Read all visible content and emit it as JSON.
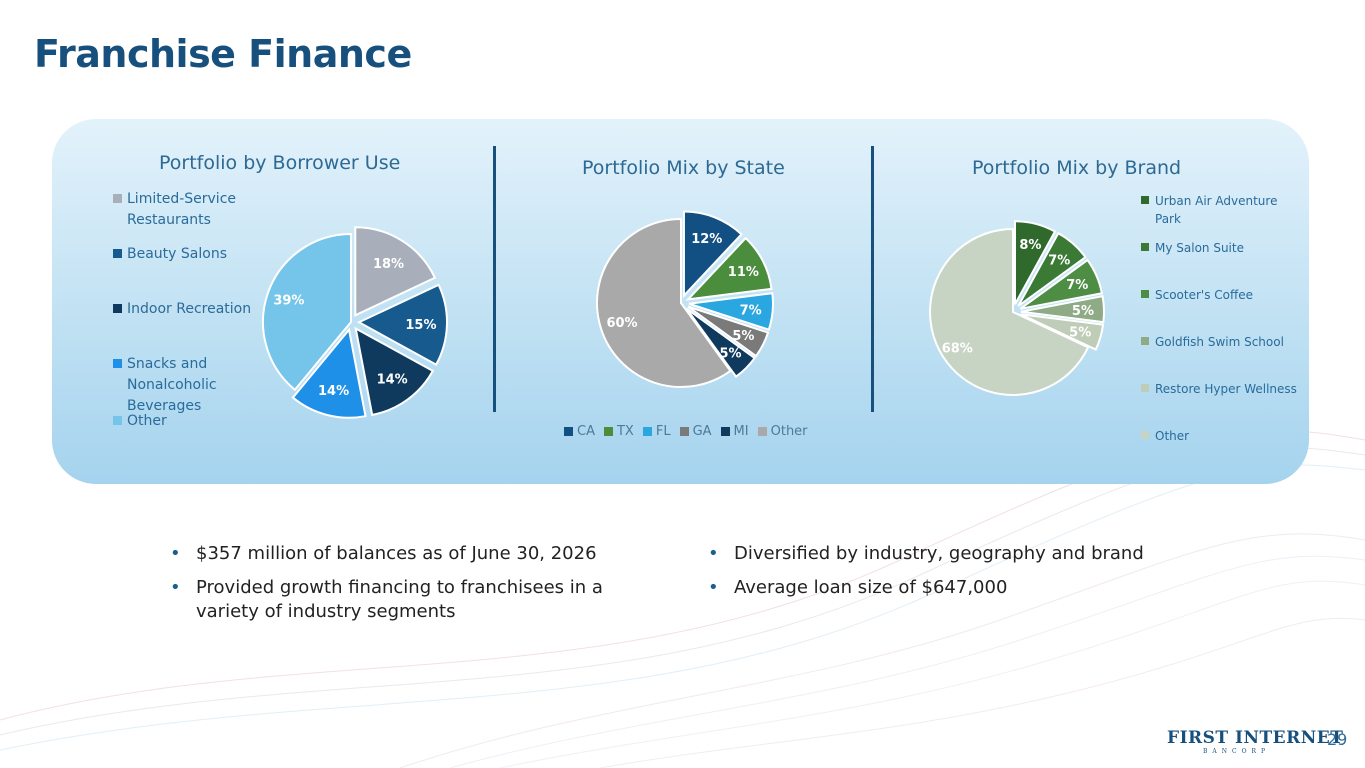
{
  "page": {
    "title": "Franchise Finance",
    "page_number": "29",
    "logo_text": "FIRST INTERNET",
    "logo_subtext": "BANCORP"
  },
  "bullets_left": [
    "$357 million of balances as of June 30, 2026",
    "Provided growth financing to franchisees in a",
    "variety of industry segments"
  ],
  "bullets_right": [
    "Diversified by industry, geography and brand",
    "Average loan size of $647,000"
  ],
  "bullet_char": "•",
  "chart_data": [
    {
      "type": "pie",
      "title": "Portfolio by Borrower Use",
      "legend_position": "left",
      "categories": [
        "Limited-Service Restaurants",
        "Beauty Salons",
        "Indoor Recreation",
        "Snacks and Nonalcoholic Beverages",
        "Other"
      ],
      "legend_lines": [
        [
          "Limited-Service",
          "Restaurants"
        ],
        [
          "Beauty Salons"
        ],
        [
          "Indoor Recreation"
        ],
        [
          "Snacks and",
          "Nonalcoholic",
          "Beverages"
        ],
        [
          "Other"
        ]
      ],
      "values": [
        18,
        15,
        14,
        14,
        39
      ],
      "labels": [
        "18%",
        "15%",
        "14%",
        "14%",
        "39%"
      ],
      "colors": [
        "#a8aeba",
        "#175a8e",
        "#0f3a5e",
        "#1e90e8",
        "#75c4ea"
      ],
      "label_colors": [
        "#ffffff",
        "#ffffff",
        "#ffffff",
        "#ffffff",
        "#ffffff"
      ],
      "exploded": [
        true,
        true,
        true,
        true,
        false
      ]
    },
    {
      "type": "pie",
      "title": "Portfolio Mix by State",
      "legend_position": "bottom",
      "categories": [
        "CA",
        "TX",
        "FL",
        "GA",
        "MI",
        "Other"
      ],
      "values": [
        12,
        11,
        7,
        5,
        5,
        60
      ],
      "labels": [
        "12%",
        "11%",
        "7%",
        "5%",
        "5%",
        "60%"
      ],
      "colors": [
        "#124f82",
        "#4a8d3c",
        "#2aa6e0",
        "#7a7a7a",
        "#0f3a5e",
        "#a9a9a9"
      ],
      "label_colors": [
        "#ffffff",
        "#ffffff",
        "#ffffff",
        "#ffffff",
        "#ffffff",
        "#ffffff"
      ],
      "exploded": [
        true,
        true,
        true,
        true,
        true,
        false
      ]
    },
    {
      "type": "pie",
      "title": "Portfolio Mix by Brand",
      "legend_position": "right",
      "categories": [
        "Urban Air Adventure Park",
        "My Salon Suite",
        "Scooter's Coffee",
        "Goldfish Swim School",
        "Restore Hyper Wellness",
        "Other"
      ],
      "legend_lines": [
        [
          "Urban Air Adventure",
          "Park"
        ],
        [
          "My Salon Suite"
        ],
        [
          "Scooter's Coffee"
        ],
        [
          "Goldfish Swim School"
        ],
        [
          "Restore Hyper Wellness"
        ],
        [
          "Other"
        ]
      ],
      "values": [
        8,
        7,
        7,
        5,
        5,
        68
      ],
      "labels": [
        "8%",
        "7%",
        "7%",
        "5%",
        "5%",
        "68%"
      ],
      "colors": [
        "#2f6a2c",
        "#3a7a34",
        "#4e8e44",
        "#8eab86",
        "#bfcdb8",
        "#c7d3c3"
      ],
      "label_colors": [
        "#ffffff",
        "#ffffff",
        "#ffffff",
        "#ffffff",
        "#ffffff",
        "#ffffff"
      ],
      "exploded": [
        true,
        true,
        true,
        true,
        true,
        false
      ]
    }
  ]
}
